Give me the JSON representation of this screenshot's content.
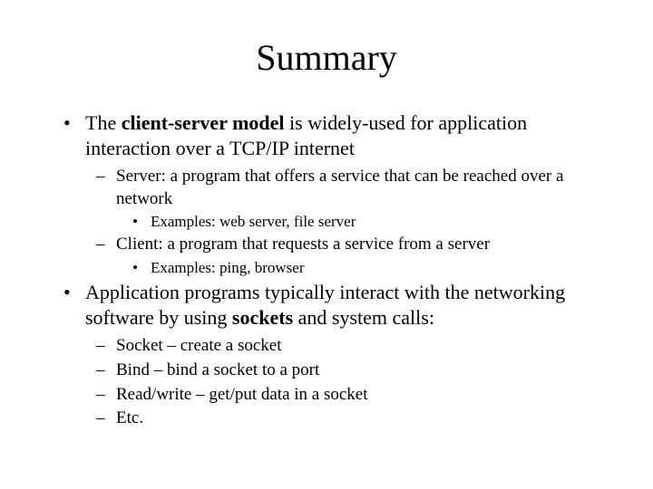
{
  "title": "Summary",
  "typography": {
    "font_family": "Times New Roman, serif",
    "title_fontsize": 40,
    "l1_fontsize": 22,
    "l2_fontsize": 19,
    "l3_fontsize": 17,
    "text_color": "#000000",
    "background_color": "#ffffff"
  },
  "markers": {
    "l1": "•",
    "l2": "–",
    "l3": "•"
  },
  "items": [
    {
      "pre": "The ",
      "bold": "client-server model",
      "post": " is widely-used for application interaction over a TCP/IP internet",
      "children": [
        {
          "text": "Server: a program that offers a service that can be reached over a network",
          "children": [
            {
              "text": "Examples: web server, file server"
            }
          ]
        },
        {
          "text": "Client: a program that requests a service from a server",
          "children": [
            {
              "text": "Examples: ping, browser"
            }
          ]
        }
      ]
    },
    {
      "pre": "Application programs typically interact with the networking software by using ",
      "bold": "sockets",
      "post": " and system calls:",
      "children": [
        {
          "text": "Socket – create a socket"
        },
        {
          "text": "Bind – bind a socket to a port"
        },
        {
          "text": "Read/write – get/put data in a socket"
        },
        {
          "text": "Etc."
        }
      ]
    }
  ]
}
